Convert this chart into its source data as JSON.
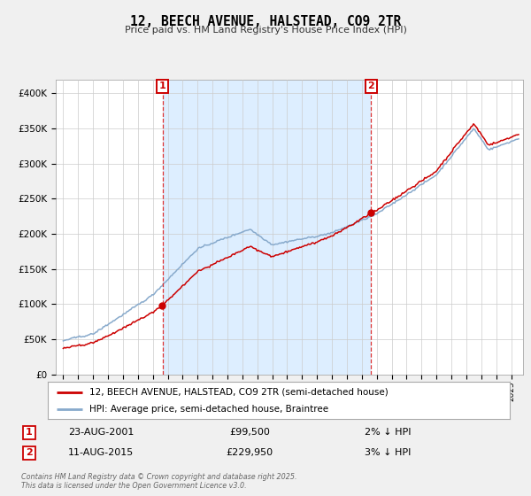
{
  "title": "12, BEECH AVENUE, HALSTEAD, CO9 2TR",
  "subtitle": "Price paid vs. HM Land Registry's House Price Index (HPI)",
  "legend_line1": "12, BEECH AVENUE, HALSTEAD, CO9 2TR (semi-detached house)",
  "legend_line2": "HPI: Average price, semi-detached house, Braintree",
  "annotation1_label": "1",
  "annotation1_date": "23-AUG-2001",
  "annotation1_price": "£99,500",
  "annotation1_hpi": "2% ↓ HPI",
  "annotation2_label": "2",
  "annotation2_date": "11-AUG-2015",
  "annotation2_price": "£229,950",
  "annotation2_hpi": "3% ↓ HPI",
  "vline1_x": 2001.65,
  "vline2_x": 2015.62,
  "ylim_min": 0,
  "ylim_max": 420000,
  "xlim_min": 1994.5,
  "xlim_max": 2025.8,
  "background_color": "#f0f0f0",
  "plot_bg_color": "#ffffff",
  "shade_color": "#ddeeff",
  "red_line_color": "#cc0000",
  "blue_line_color": "#88aacc",
  "vline_color": "#dd3333",
  "grid_color": "#cccccc",
  "dot_color": "#cc0000",
  "footer_text": "Contains HM Land Registry data © Crown copyright and database right 2025.\nThis data is licensed under the Open Government Licence v3.0.",
  "sale1_year": 2001.65,
  "sale1_price": 99500,
  "sale2_year": 2015.62,
  "sale2_price": 229950
}
